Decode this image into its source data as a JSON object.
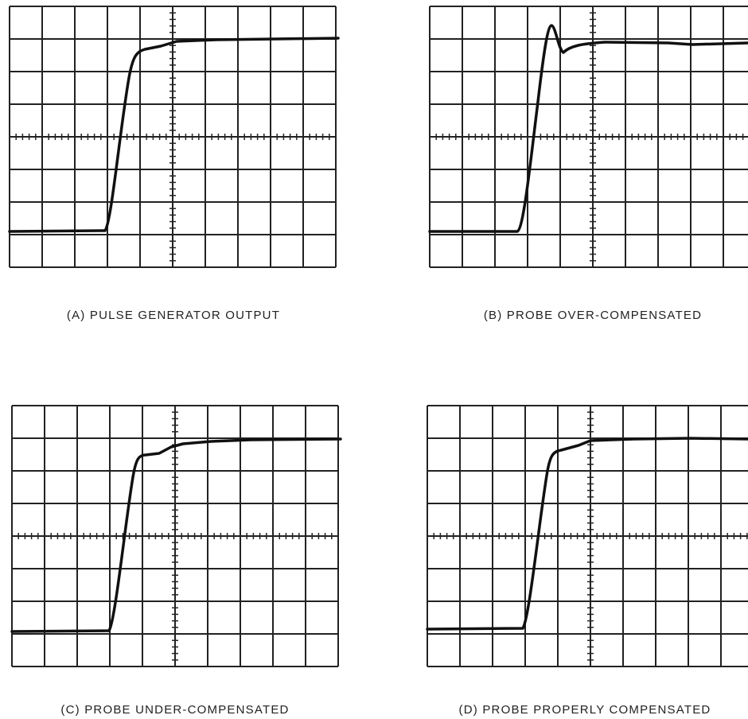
{
  "panels": [
    {
      "caption": "(A) PULSE GENERATOR OUTPUT"
    },
    {
      "caption": "(B) PROBE OVER-COMPENSATED"
    },
    {
      "caption": "(C) PROBE UNDER-COMPENSATED"
    },
    {
      "caption": "(D) PROBE PROPERLY COMPENSATED"
    }
  ]
}
